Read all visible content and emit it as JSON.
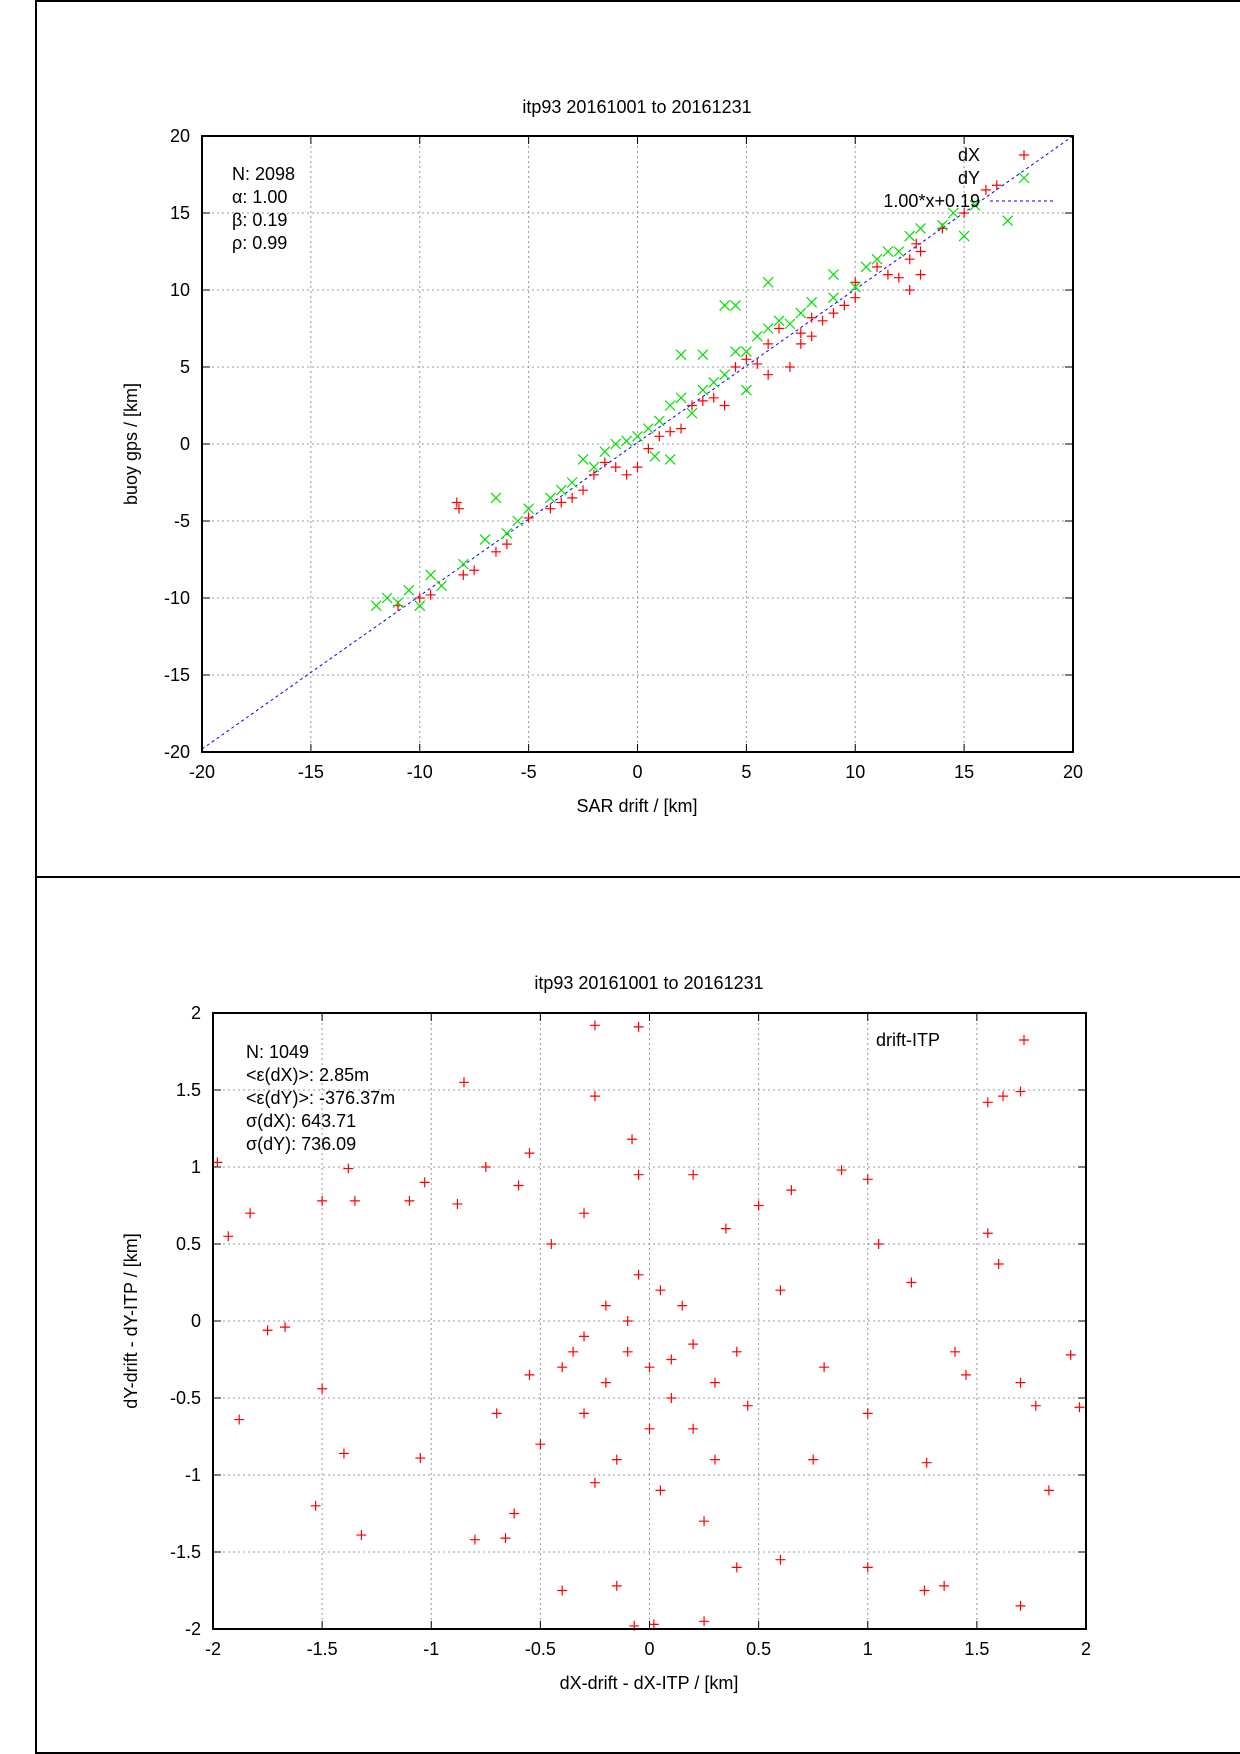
{
  "chart_data": [
    {
      "type": "scatter",
      "title": "itp93 20161001 to 20161231",
      "xlabel": "SAR drift / [km]",
      "ylabel": "buoy gps / [km]",
      "xlim": [
        -20,
        20
      ],
      "ylim": [
        -20,
        20
      ],
      "xticks": [
        -20,
        -15,
        -10,
        -5,
        0,
        5,
        10,
        15,
        20
      ],
      "yticks": [
        -20,
        -15,
        -10,
        -5,
        0,
        5,
        10,
        15,
        20
      ],
      "grid": true,
      "legend_position": "top-right",
      "stats": [
        "N: 2098",
        "α: 1.00",
        "β: 0.19",
        "ρ: 0.99"
      ],
      "fit": {
        "label": "1.00*x+0.19",
        "slope": 1.0,
        "intercept": 0.19,
        "color": "#0000ff"
      },
      "series": [
        {
          "name": "dX",
          "marker": "plus",
          "color": "#ff0000",
          "points": [
            [
              -8,
              -8.5
            ],
            [
              -7.5,
              -8.2
            ],
            [
              -8.3,
              -3.8
            ],
            [
              -8.2,
              -4.2
            ],
            [
              -6,
              -6.5
            ],
            [
              -5,
              -4.8
            ],
            [
              -3,
              -3.5
            ],
            [
              -2,
              -2
            ],
            [
              -1,
              -1.5
            ],
            [
              0,
              -1.5
            ],
            [
              1,
              0.5
            ],
            [
              2,
              1
            ],
            [
              3,
              2.8
            ],
            [
              4,
              2.5
            ],
            [
              4.5,
              5
            ],
            [
              6,
              6.5
            ],
            [
              6.5,
              7.5
            ],
            [
              7,
              5
            ],
            [
              7.5,
              7.2
            ],
            [
              8,
              8.2
            ],
            [
              9,
              8.5
            ],
            [
              10,
              9.5
            ],
            [
              10,
              10.5
            ],
            [
              11,
              11.5
            ],
            [
              12,
              10.8
            ],
            [
              12.5,
              12
            ],
            [
              13,
              11
            ],
            [
              13,
              12.5
            ],
            [
              14,
              14
            ],
            [
              15,
              15
            ],
            [
              16,
              16.5
            ],
            [
              16.5,
              16.8
            ],
            [
              12.8,
              13
            ],
            [
              -10,
              -10
            ],
            [
              -11,
              -10.5
            ],
            [
              -9.5,
              -9.8
            ],
            [
              -4,
              -4.2
            ],
            [
              -2.5,
              -3
            ],
            [
              1.5,
              0.8
            ],
            [
              5,
              5.5
            ],
            [
              5.5,
              5.2
            ],
            [
              8.5,
              8
            ],
            [
              9.5,
              9
            ],
            [
              -6.5,
              -7
            ],
            [
              3.5,
              3
            ],
            [
              6,
              4.5
            ],
            [
              -1.5,
              -1.2
            ],
            [
              0.5,
              -0.3
            ],
            [
              2.5,
              2.5
            ],
            [
              -3.5,
              -3.8
            ],
            [
              11.5,
              11
            ],
            [
              7.5,
              6.5
            ],
            [
              8,
              7
            ],
            [
              -0.5,
              -2
            ],
            [
              12.5,
              10
            ]
          ]
        },
        {
          "name": "dY",
          "marker": "cross",
          "color": "#00e000",
          "points": [
            [
              -12,
              -10.5
            ],
            [
              -11,
              -10.3
            ],
            [
              -10.5,
              -9.5
            ],
            [
              -10,
              -10.5
            ],
            [
              -9,
              -9.2
            ],
            [
              -8,
              -7.8
            ],
            [
              -7,
              -6.2
            ],
            [
              -6,
              -5.8
            ],
            [
              -5,
              -4.2
            ],
            [
              -4,
              -3.5
            ],
            [
              -3,
              -2.5
            ],
            [
              -2,
              -1.5
            ],
            [
              -1.5,
              -0.5
            ],
            [
              -1,
              0
            ],
            [
              0,
              0.5
            ],
            [
              0.5,
              1
            ],
            [
              1,
              1.5
            ],
            [
              1.5,
              2.5
            ],
            [
              2,
              3
            ],
            [
              2,
              5.8
            ],
            [
              2.5,
              2
            ],
            [
              3,
              5.8
            ],
            [
              3,
              3.5
            ],
            [
              4,
              4.5
            ],
            [
              4,
              9
            ],
            [
              4.5,
              9
            ],
            [
              4.5,
              6
            ],
            [
              5,
              6
            ],
            [
              5,
              3.5
            ],
            [
              6,
              7.5
            ],
            [
              6,
              10.5
            ],
            [
              6.5,
              8
            ],
            [
              7,
              7.8
            ],
            [
              8,
              9.2
            ],
            [
              9,
              9.5
            ],
            [
              9,
              11
            ],
            [
              10,
              10.2
            ],
            [
              10.5,
              11.5
            ],
            [
              11,
              12
            ],
            [
              12,
              12.5
            ],
            [
              12.5,
              13.5
            ],
            [
              13,
              14
            ],
            [
              14,
              14.2
            ],
            [
              14.5,
              15
            ],
            [
              15,
              13.5
            ],
            [
              15.5,
              15.5
            ],
            [
              -5.5,
              -5
            ],
            [
              -3.5,
              -3
            ],
            [
              -0.5,
              0.2
            ],
            [
              1.5,
              -1
            ],
            [
              -6.5,
              -3.5
            ],
            [
              -9.5,
              -8.5
            ],
            [
              3.5,
              4
            ],
            [
              7.5,
              8.5
            ],
            [
              11.5,
              12.5
            ],
            [
              -2.5,
              -1
            ],
            [
              0.8,
              -0.8
            ],
            [
              5.5,
              7
            ],
            [
              -11.5,
              -10
            ],
            [
              17,
              14.5
            ]
          ]
        }
      ]
    },
    {
      "type": "scatter",
      "title": "itp93 20161001 to 20161231",
      "xlabel": "dX-drift - dX-ITP / [km]",
      "ylabel": "dY-drift - dY-ITP / [km]",
      "xlim": [
        -2,
        2
      ],
      "ylim": [
        -2,
        2
      ],
      "xticks": [
        -2,
        -1.5,
        -1,
        -0.5,
        0,
        0.5,
        1,
        1.5,
        2
      ],
      "yticks": [
        -2,
        -1.5,
        -1,
        -0.5,
        0,
        0.5,
        1,
        1.5,
        2
      ],
      "grid": true,
      "legend_position": "top-right",
      "stats": [
        "N: 1049",
        "<ε(dX)>:  2.85m",
        "<ε(dY)>: -376.37m",
        "σ(dX):  643.71",
        "σ(dY):  736.09"
      ],
      "series": [
        {
          "name": "drift-ITP",
          "marker": "plus",
          "color": "#ff0000",
          "points": [
            [
              -0.25,
              1.92
            ],
            [
              -0.05,
              1.91
            ],
            [
              -0.25,
              1.46
            ],
            [
              -0.85,
              1.55
            ],
            [
              -0.08,
              1.18
            ],
            [
              -0.05,
              0.95
            ],
            [
              0.2,
              0.95
            ],
            [
              0.88,
              0.98
            ],
            [
              1.0,
              0.92
            ],
            [
              1.55,
              1.42
            ],
            [
              1.62,
              1.46
            ],
            [
              1.7,
              1.49
            ],
            [
              1.55,
              0.57
            ],
            [
              1.6,
              0.37
            ],
            [
              -1.98,
              1.03
            ],
            [
              -1.93,
              0.55
            ],
            [
              -1.83,
              0.7
            ],
            [
              -1.75,
              -0.06
            ],
            [
              -1.67,
              -0.04
            ],
            [
              -1.88,
              -0.64
            ],
            [
              -1.5,
              0.78
            ],
            [
              -1.35,
              0.78
            ],
            [
              -1.38,
              0.99
            ],
            [
              -1.1,
              0.78
            ],
            [
              -1.03,
              0.9
            ],
            [
              -0.88,
              0.76
            ],
            [
              -0.75,
              1.0
            ],
            [
              -0.6,
              0.88
            ],
            [
              -0.55,
              1.09
            ],
            [
              -1.5,
              -0.44
            ],
            [
              -1.4,
              -0.86
            ],
            [
              -1.32,
              -1.39
            ],
            [
              -1.53,
              -1.2
            ],
            [
              -1.05,
              -0.89
            ],
            [
              -0.8,
              -1.42
            ],
            [
              -0.66,
              -1.41
            ],
            [
              -0.62,
              -1.25
            ],
            [
              -0.5,
              -0.8
            ],
            [
              -0.4,
              -0.3
            ],
            [
              -0.3,
              -0.1
            ],
            [
              -0.2,
              0.1
            ],
            [
              -0.1,
              -0.2
            ],
            [
              0,
              -0.3
            ],
            [
              0.1,
              -0.5
            ],
            [
              0.2,
              -0.7
            ],
            [
              0.3,
              -0.4
            ],
            [
              0.4,
              -0.2
            ],
            [
              -0.3,
              -0.6
            ],
            [
              -0.15,
              -0.9
            ],
            [
              0.05,
              -1.1
            ],
            [
              0.25,
              -1.3
            ],
            [
              0.4,
              -1.6
            ],
            [
              0.05,
              0.2
            ],
            [
              -0.05,
              0.3
            ],
            [
              0.15,
              0.1
            ],
            [
              -0.45,
              0.5
            ],
            [
              0.35,
              0.6
            ],
            [
              0.6,
              0.2
            ],
            [
              0.8,
              -0.3
            ],
            [
              1.0,
              -0.6
            ],
            [
              1.2,
              0.25
            ],
            [
              1.4,
              -0.2
            ],
            [
              1.45,
              -0.35
            ],
            [
              1.7,
              -0.4
            ],
            [
              1.77,
              -0.55
            ],
            [
              1.93,
              -0.22
            ],
            [
              1.97,
              -0.56
            ],
            [
              1.83,
              -1.1
            ],
            [
              1.7,
              -1.85
            ],
            [
              1.35,
              -1.72
            ],
            [
              1.26,
              -1.75
            ],
            [
              1.0,
              -1.6
            ],
            [
              0.6,
              -1.55
            ],
            [
              0.25,
              -1.95
            ],
            [
              0.02,
              -1.97
            ],
            [
              -0.07,
              -1.98
            ],
            [
              -0.15,
              -1.72
            ],
            [
              -0.4,
              -1.75
            ],
            [
              -0.3,
              0.7
            ],
            [
              0.5,
              0.75
            ],
            [
              0.65,
              0.85
            ],
            [
              -0.7,
              -0.6
            ],
            [
              0.75,
              -0.9
            ],
            [
              1.05,
              0.5
            ],
            [
              1.27,
              -0.92
            ],
            [
              -0.2,
              -0.4
            ],
            [
              0.1,
              -0.25
            ],
            [
              -0.35,
              -0.2
            ],
            [
              0.2,
              -0.15
            ],
            [
              0,
              -0.7
            ],
            [
              -0.1,
              0.0
            ],
            [
              0.3,
              -0.9
            ],
            [
              -0.25,
              -1.05
            ],
            [
              0.45,
              -0.55
            ],
            [
              -0.55,
              -0.35
            ]
          ]
        }
      ]
    }
  ]
}
